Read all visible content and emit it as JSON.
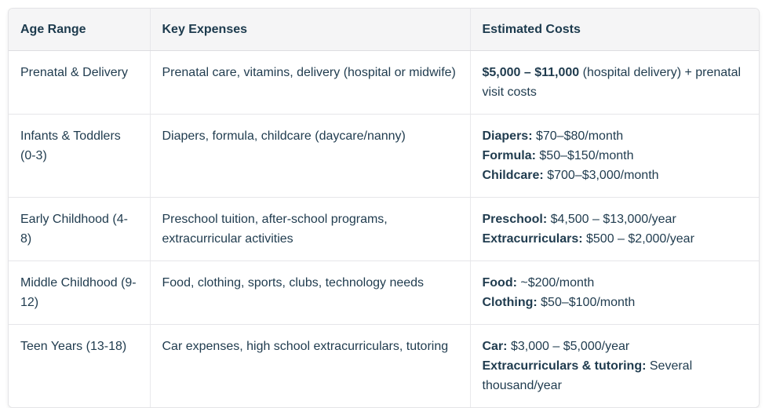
{
  "table": {
    "headers": [
      "Age Range",
      "Key Expenses",
      "Estimated Costs"
    ],
    "rows": [
      {
        "age_range": "Prenatal & Delivery",
        "key_expenses": "Prenatal care, vitamins, delivery (hospital or midwife)",
        "costs": [
          {
            "label": "$5,000 – $11,000",
            "value": " (hospital delivery) + prenatal visit costs"
          }
        ]
      },
      {
        "age_range": "Infants & Toddlers (0-3)",
        "key_expenses": "Diapers, formula, childcare (daycare/nanny)",
        "costs": [
          {
            "label": "Diapers:",
            "value": " $70–$80/month"
          },
          {
            "label": "Formula:",
            "value": " $50–$150/month"
          },
          {
            "label": "Childcare:",
            "value": " $700–$3,000/month"
          }
        ]
      },
      {
        "age_range": "Early Childhood (4-8)",
        "key_expenses": "Preschool tuition, after-school programs, extracurricular activities",
        "costs": [
          {
            "label": "Preschool:",
            "value": " $4,500 – $13,000/year"
          },
          {
            "label": "Extracurriculars:",
            "value": " $500 – $2,000/year"
          }
        ]
      },
      {
        "age_range": "Middle Childhood (9-12)",
        "key_expenses": "Food, clothing, sports, clubs, technology needs",
        "costs": [
          {
            "label": "Food:",
            "value": " ~$200/month"
          },
          {
            "label": "Clothing:",
            "value": " $50–$100/month"
          }
        ]
      },
      {
        "age_range": "Teen Years (13-18)",
        "key_expenses": "Car expenses, high school extracurriculars, tutoring",
        "costs": [
          {
            "label": "Car:",
            "value": " $3,000 – $5,000/year"
          },
          {
            "label": "Extracurriculars & tutoring:",
            "value": " Several thousand/year"
          }
        ]
      }
    ]
  },
  "colors": {
    "text": "#1f3b4e",
    "header_background": "#f5f5f6",
    "border": "#e6e6e9",
    "background": "#ffffff"
  }
}
